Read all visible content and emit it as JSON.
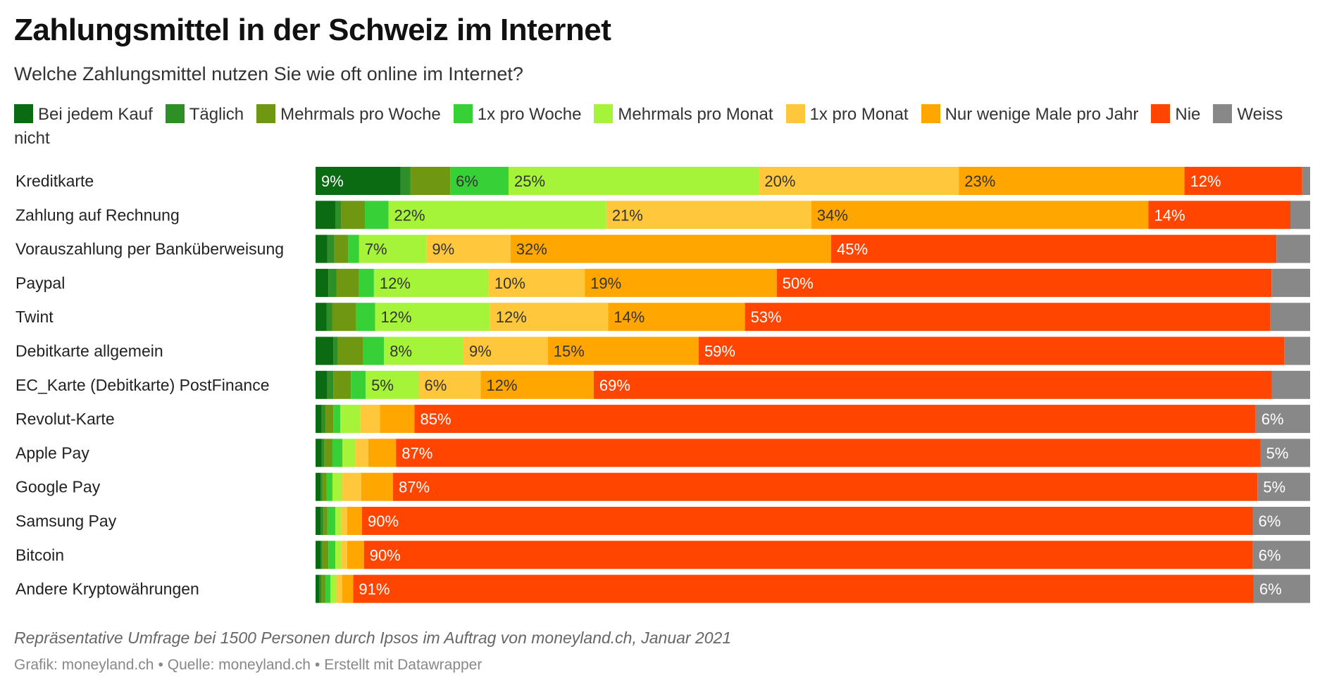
{
  "title": "Zahlungsmittel in der Schweiz im Internet",
  "subtitle": "Welche Zahlungsmittel nutzen Sie wie oft online im Internet?",
  "notes": "Repräsentative Umfrage bei 1500 Personen durch Ipsos im Auftrag von moneyland.ch, Januar 2021",
  "credits": {
    "graphic": "Grafik: moneyland.ch",
    "source": "Quelle: moneyland.ch",
    "tool": "Erstellt mit Datawrapper",
    "separator": "•"
  },
  "chart_data": {
    "type": "bar",
    "orientation": "horizontal",
    "stacked": true,
    "unit": "%",
    "xlim": [
      0,
      100
    ],
    "legend_position": "top",
    "categories": [
      "Kreditkarte",
      "Zahlung auf Rechnung",
      "Vorauszahlung per Banküberweisung",
      "Paypal",
      "Twint",
      "Debitkarte allgemein",
      "EC_Karte (Debitkarte) PostFinance",
      "Revolut-Karte",
      "Apple Pay",
      "Google Pay",
      "Samsung Pay",
      "Bitcoin",
      "Andere Kryptowährungen"
    ],
    "series": [
      {
        "name": "Bei jedem Kauf",
        "color": "#0a6b12",
        "values": [
          8.6,
          2.0,
          1.2,
          1.3,
          1.1,
          1.8,
          1.2,
          0.6,
          0.6,
          0.5,
          0.5,
          0.5,
          0.4
        ],
        "labeled": [
          true,
          false,
          false,
          false,
          false,
          false,
          false,
          false,
          false,
          false,
          false,
          false,
          false
        ]
      },
      {
        "name": "Täglich",
        "color": "#2d8f25",
        "values": [
          1.0,
          0.6,
          0.7,
          0.8,
          0.6,
          0.4,
          0.6,
          0.4,
          0.3,
          0.2,
          0.3,
          0.2,
          0.2
        ],
        "labeled": [
          false,
          false,
          false,
          false,
          false,
          false,
          false,
          false,
          false,
          false,
          false,
          false,
          false
        ]
      },
      {
        "name": "Mehrmals pro Woche",
        "color": "#6f9712",
        "values": [
          4.0,
          2.4,
          1.4,
          2.3,
          2.4,
          2.6,
          1.8,
          0.8,
          0.8,
          0.4,
          0.4,
          0.6,
          0.4
        ],
        "labeled": [
          false,
          false,
          false,
          false,
          false,
          false,
          false,
          false,
          false,
          false,
          false,
          false,
          false
        ]
      },
      {
        "name": "1x pro Woche",
        "color": "#37d137",
        "values": [
          5.9,
          2.4,
          1.1,
          1.5,
          1.9,
          2.1,
          1.5,
          0.7,
          1.0,
          0.6,
          0.8,
          0.7,
          0.5
        ],
        "labeled": [
          true,
          false,
          false,
          false,
          false,
          false,
          false,
          false,
          false,
          false,
          false,
          false,
          false
        ]
      },
      {
        "name": "Mehrmals pro Monat",
        "color": "#a6f43a",
        "values": [
          25.3,
          22.1,
          6.8,
          11.6,
          11.6,
          8.0,
          5.4,
          2.0,
          1.3,
          1.0,
          0.6,
          0.6,
          0.6
        ],
        "labeled": [
          true,
          true,
          true,
          true,
          true,
          true,
          true,
          false,
          false,
          false,
          false,
          false,
          false
        ]
      },
      {
        "name": "1x pro Monat",
        "color": "#ffc83c",
        "values": [
          20.2,
          20.8,
          8.5,
          9.7,
          11.9,
          8.5,
          6.3,
          2.0,
          1.3,
          1.9,
          0.6,
          0.6,
          0.6
        ],
        "labeled": [
          true,
          true,
          true,
          true,
          true,
          true,
          true,
          false,
          false,
          false,
          false,
          false,
          false
        ]
      },
      {
        "name": "Nur wenige Male pro Jahr",
        "color": "#ffa600",
        "values": [
          22.8,
          34.2,
          32.4,
          19.4,
          13.8,
          15.2,
          11.5,
          3.5,
          2.8,
          3.2,
          1.5,
          1.7,
          1.1
        ],
        "labeled": [
          true,
          true,
          true,
          true,
          true,
          true,
          true,
          false,
          false,
          false,
          false,
          false,
          false
        ]
      },
      {
        "name": "Nie",
        "color": "#ff4500",
        "values": [
          11.9,
          14.4,
          45.0,
          50.0,
          53.0,
          59.0,
          69.0,
          85.0,
          87.0,
          87.0,
          90.0,
          90.0,
          91.0
        ],
        "labeled": [
          true,
          true,
          true,
          true,
          true,
          true,
          true,
          true,
          true,
          true,
          true,
          true,
          true
        ]
      },
      {
        "name": "Weiss nicht",
        "color": "#888888",
        "values": [
          0.8,
          2.0,
          3.4,
          3.9,
          4.0,
          2.6,
          3.9,
          5.5,
          5.0,
          5.3,
          5.8,
          5.8,
          5.7
        ],
        "labeled": [
          false,
          false,
          false,
          false,
          false,
          false,
          false,
          true,
          true,
          true,
          true,
          true,
          true
        ]
      }
    ]
  }
}
